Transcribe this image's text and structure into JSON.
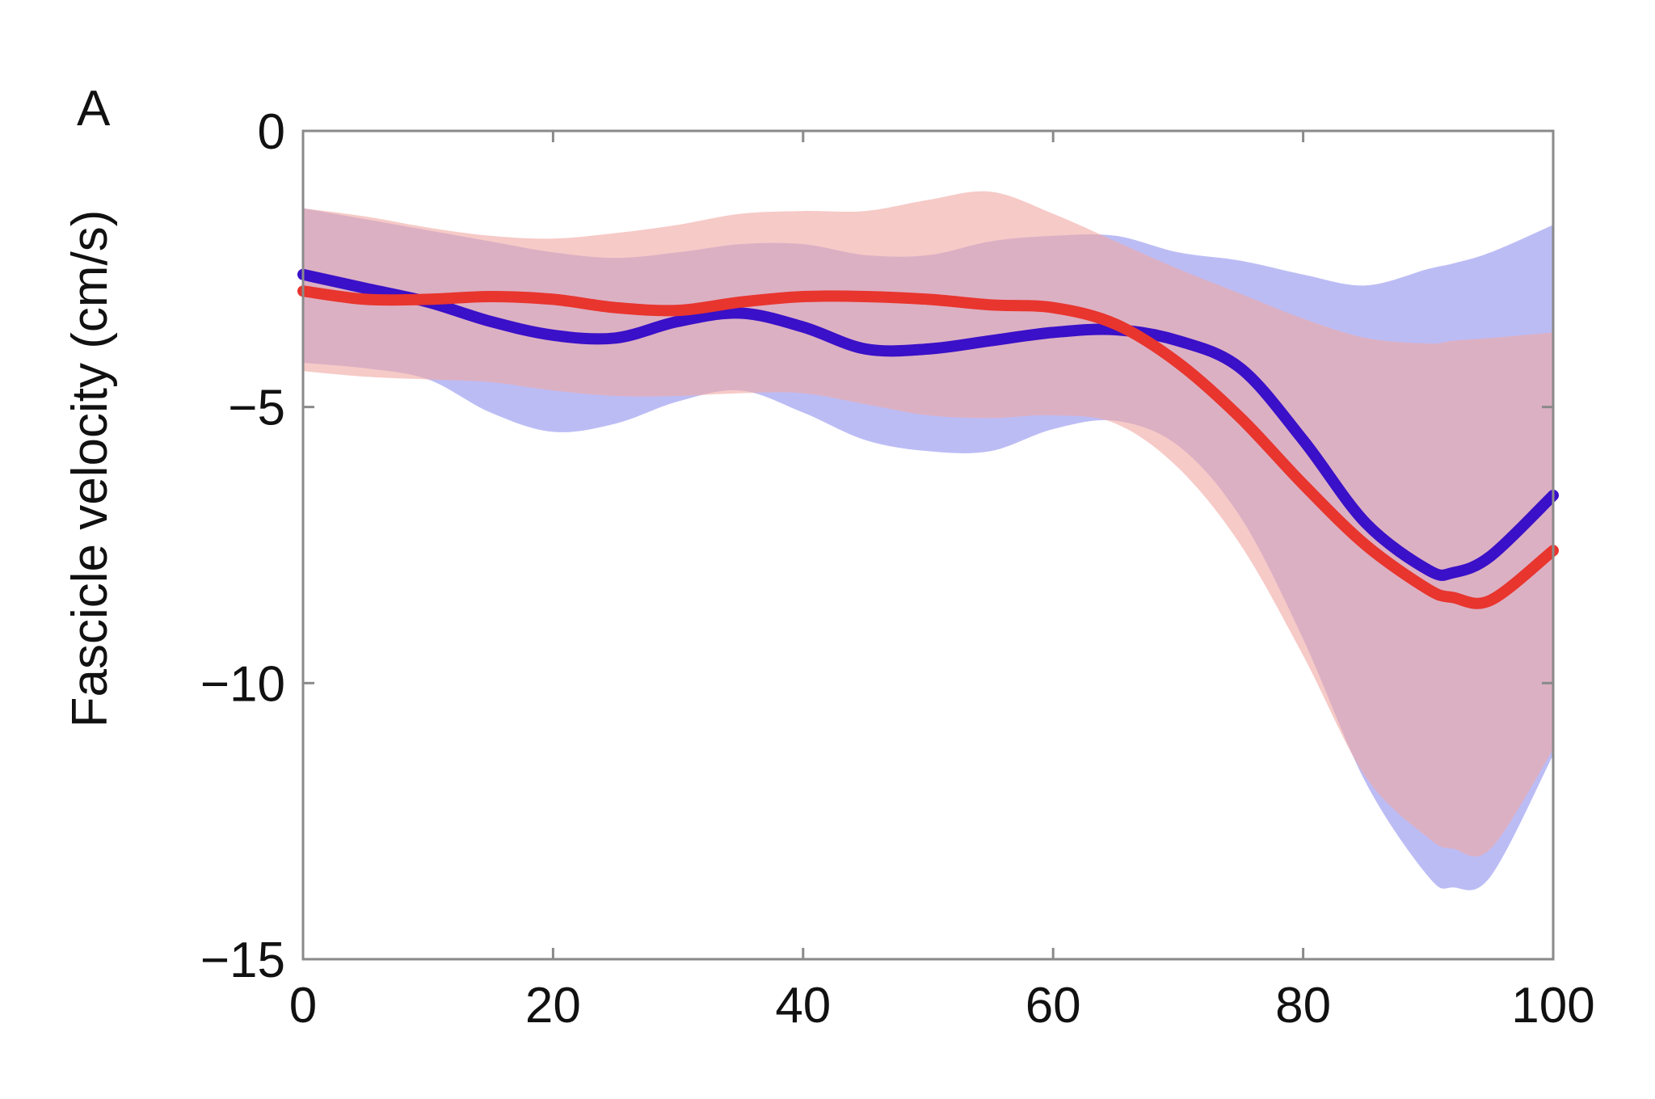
{
  "panel_label": "A",
  "colors": {
    "series_1_line": "#3a10c8",
    "series_1_band": "#a9a9f2",
    "series_2_line": "#e8352e",
    "series_2_band": "#f0aaa5",
    "axis": "#8a8a8a",
    "text": "#111111"
  },
  "chart_data": {
    "type": "line",
    "title": "",
    "xlabel": "",
    "ylabel": "Fascicle velocity (cm/s)",
    "xlim": [
      0,
      100
    ],
    "ylim": [
      -15,
      0
    ],
    "x_ticks": [
      0,
      20,
      40,
      60,
      80,
      100
    ],
    "x_tick_labels": [
      "0",
      "20",
      "40",
      "60",
      "80",
      "100"
    ],
    "y_ticks": [
      0,
      -5,
      -10,
      -15
    ],
    "y_tick_labels": [
      "0",
      "−5",
      "−10",
      "−15"
    ],
    "grid": false,
    "legend": "none",
    "x": [
      0,
      5,
      10,
      15,
      20,
      25,
      30,
      35,
      40,
      45,
      50,
      55,
      60,
      65,
      70,
      75,
      80,
      85,
      90,
      92,
      95,
      100
    ],
    "series": [
      {
        "color": "#3a10c8",
        "band_color": "#a9a9f2",
        "values": [
          -2.6,
          -2.85,
          -3.1,
          -3.45,
          -3.7,
          -3.75,
          -3.45,
          -3.3,
          -3.55,
          -3.95,
          -3.95,
          -3.8,
          -3.65,
          -3.6,
          -3.8,
          -4.3,
          -5.6,
          -7.1,
          -7.95,
          -8.0,
          -7.7,
          -6.6
        ],
        "upper": [
          -1.4,
          -1.6,
          -1.8,
          -2.0,
          -2.2,
          -2.3,
          -2.2,
          -2.05,
          -2.05,
          -2.25,
          -2.25,
          -2.0,
          -1.9,
          -1.9,
          -2.2,
          -2.35,
          -2.6,
          -2.8,
          -2.5,
          -2.4,
          -2.2,
          -1.7
        ],
        "lower": [
          -4.2,
          -4.3,
          -4.5,
          -5.1,
          -5.45,
          -5.3,
          -4.9,
          -4.7,
          -5.1,
          -5.6,
          -5.8,
          -5.8,
          -5.4,
          -5.25,
          -5.7,
          -7.0,
          -9.2,
          -11.8,
          -13.5,
          -13.7,
          -13.5,
          -11.3
        ]
      },
      {
        "color": "#e8352e",
        "band_color": "#f0aaa5",
        "values": [
          -2.9,
          -3.05,
          -3.05,
          -3.0,
          -3.05,
          -3.2,
          -3.25,
          -3.1,
          -3.0,
          -3.0,
          -3.05,
          -3.15,
          -3.2,
          -3.5,
          -4.2,
          -5.2,
          -6.4,
          -7.5,
          -8.3,
          -8.45,
          -8.5,
          -7.6
        ],
        "upper": [
          -1.4,
          -1.55,
          -1.75,
          -1.9,
          -1.95,
          -1.85,
          -1.7,
          -1.5,
          -1.45,
          -1.45,
          -1.25,
          -1.1,
          -1.5,
          -2.0,
          -2.5,
          -2.95,
          -3.4,
          -3.75,
          -3.85,
          -3.8,
          -3.75,
          -3.65
        ],
        "lower": [
          -4.35,
          -4.45,
          -4.5,
          -4.55,
          -4.7,
          -4.8,
          -4.8,
          -4.75,
          -4.75,
          -4.95,
          -5.15,
          -5.2,
          -5.15,
          -5.3,
          -6.1,
          -7.5,
          -9.5,
          -11.7,
          -12.8,
          -13.0,
          -13.0,
          -11.2
        ]
      }
    ]
  }
}
